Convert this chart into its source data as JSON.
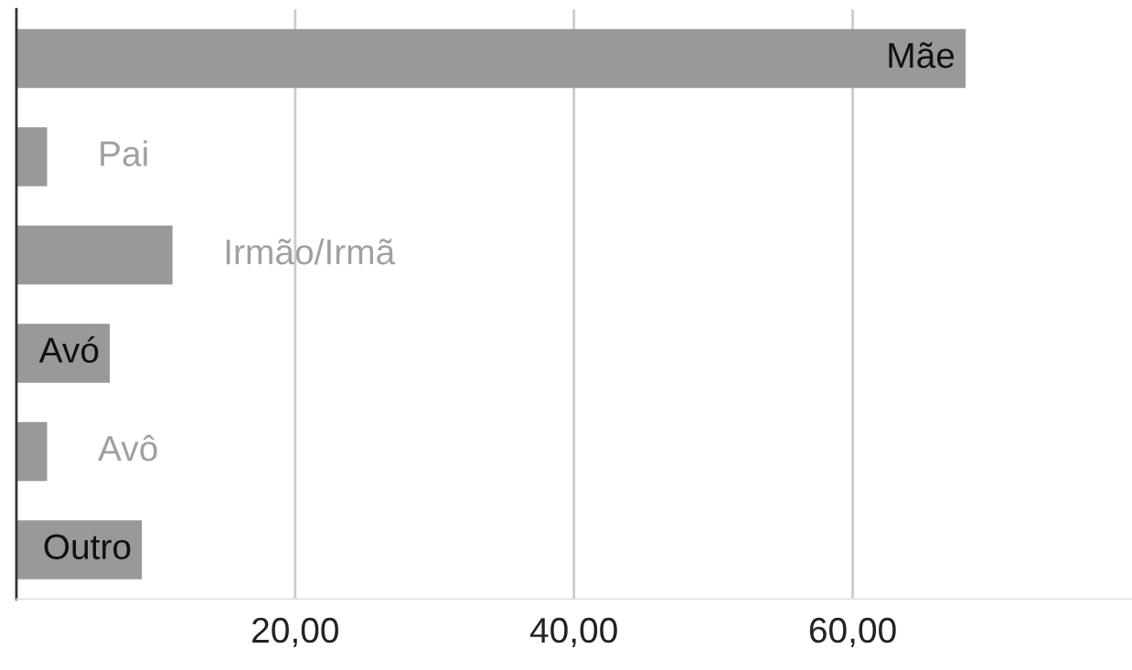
{
  "chart_data": {
    "type": "bar",
    "orientation": "horizontal",
    "categories": [
      "Mãe",
      "Pai",
      "Irmão/Irmã",
      "Avó",
      "Avô",
      "Outro"
    ],
    "series": [
      {
        "color": "#999999",
        "values": [
          68.1,
          2.2,
          11.2,
          6.7,
          2.2,
          9.0
        ]
      }
    ],
    "xlim": [
      0,
      80
    ],
    "xticks": [
      {
        "value": 20,
        "label": "20,00"
      },
      {
        "value": 40,
        "label": "40,00"
      },
      {
        "value": 60,
        "label": "60,00"
      }
    ],
    "grid": "x",
    "tick_labels": "x",
    "legend": false
  }
}
